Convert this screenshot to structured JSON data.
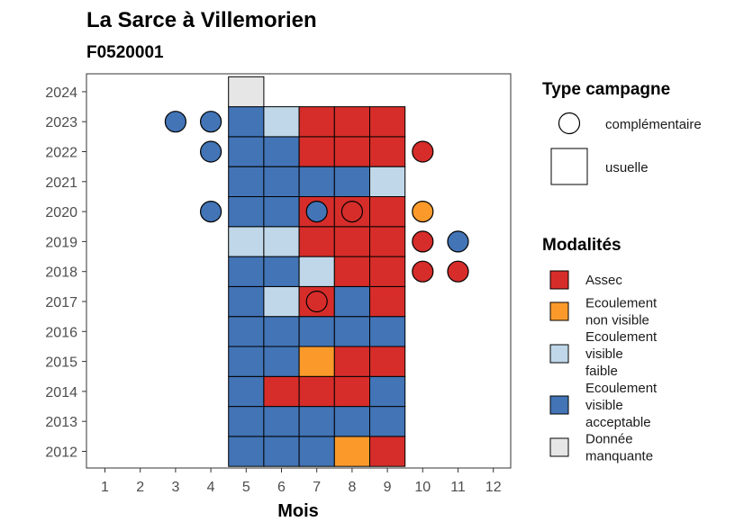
{
  "chart_data": {
    "type": "heatmap",
    "title": "La Sarce à Villemorien",
    "subtitle": "F0520001",
    "xlabel": "Mois",
    "ylabel": "",
    "x_ticks": [
      1,
      2,
      3,
      4,
      5,
      6,
      7,
      8,
      9,
      10,
      11,
      12
    ],
    "y_ticks": [
      2012,
      2013,
      2014,
      2015,
      2016,
      2017,
      2018,
      2019,
      2020,
      2021,
      2022,
      2023,
      2024
    ],
    "colors": {
      "Assec": "#d62d2a",
      "Ecoulement non visible": "#fb9a2b",
      "Ecoulement visible faible": "#bfd7e8",
      "Ecoulement visible acceptable": "#4274b6",
      "Donnée manquante": "#e6e6e6"
    },
    "usuelle": [
      {
        "year": 2012,
        "months": {
          "5": "Ecoulement visible acceptable",
          "6": "Ecoulement visible acceptable",
          "7": "Ecoulement visible acceptable",
          "8": "Ecoulement non visible",
          "9": "Assec"
        }
      },
      {
        "year": 2013,
        "months": {
          "5": "Ecoulement visible acceptable",
          "6": "Ecoulement visible acceptable",
          "7": "Ecoulement visible acceptable",
          "8": "Ecoulement visible acceptable",
          "9": "Ecoulement visible acceptable"
        }
      },
      {
        "year": 2014,
        "months": {
          "5": "Ecoulement visible acceptable",
          "6": "Assec",
          "7": "Assec",
          "8": "Assec",
          "9": "Ecoulement visible acceptable"
        }
      },
      {
        "year": 2015,
        "months": {
          "5": "Ecoulement visible acceptable",
          "6": "Ecoulement visible acceptable",
          "7": "Ecoulement non visible",
          "8": "Assec",
          "9": "Assec"
        }
      },
      {
        "year": 2016,
        "months": {
          "5": "Ecoulement visible acceptable",
          "6": "Ecoulement visible acceptable",
          "7": "Ecoulement visible acceptable",
          "8": "Ecoulement visible acceptable",
          "9": "Ecoulement visible acceptable"
        }
      },
      {
        "year": 2017,
        "months": {
          "5": "Ecoulement visible acceptable",
          "6": "Ecoulement visible faible",
          "7": "Assec",
          "8": "Ecoulement visible acceptable",
          "9": "Assec"
        }
      },
      {
        "year": 2018,
        "months": {
          "5": "Ecoulement visible acceptable",
          "6": "Ecoulement visible acceptable",
          "7": "Ecoulement visible faible",
          "8": "Assec",
          "9": "Assec"
        }
      },
      {
        "year": 2019,
        "months": {
          "5": "Ecoulement visible faible",
          "6": "Ecoulement visible faible",
          "7": "Assec",
          "8": "Assec",
          "9": "Assec"
        }
      },
      {
        "year": 2020,
        "months": {
          "5": "Ecoulement visible acceptable",
          "6": "Ecoulement visible acceptable",
          "7": "Assec",
          "8": "Assec",
          "9": "Assec"
        }
      },
      {
        "year": 2021,
        "months": {
          "5": "Ecoulement visible acceptable",
          "6": "Ecoulement visible acceptable",
          "7": "Ecoulement visible acceptable",
          "8": "Ecoulement visible acceptable",
          "9": "Ecoulement visible faible"
        }
      },
      {
        "year": 2022,
        "months": {
          "5": "Ecoulement visible acceptable",
          "6": "Ecoulement visible acceptable",
          "7": "Assec",
          "8": "Assec",
          "9": "Assec"
        }
      },
      {
        "year": 2023,
        "months": {
          "5": "Ecoulement visible acceptable",
          "6": "Ecoulement visible faible",
          "7": "Assec",
          "8": "Assec",
          "9": "Assec"
        }
      },
      {
        "year": 2024,
        "months": {
          "5": "Donnée manquante"
        }
      }
    ],
    "complementaire": [
      {
        "year": 2023,
        "month": 3,
        "value": "Ecoulement visible acceptable"
      },
      {
        "year": 2023,
        "month": 4,
        "value": "Ecoulement visible acceptable"
      },
      {
        "year": 2022,
        "month": 4,
        "value": "Ecoulement visible acceptable"
      },
      {
        "year": 2022,
        "month": 10,
        "value": "Assec"
      },
      {
        "year": 2020,
        "month": 4,
        "value": "Ecoulement visible acceptable"
      },
      {
        "year": 2020,
        "month": 7,
        "value": "Ecoulement visible acceptable"
      },
      {
        "year": 2020,
        "month": 8,
        "value": "Assec"
      },
      {
        "year": 2020,
        "month": 10,
        "value": "Ecoulement non visible"
      },
      {
        "year": 2019,
        "month": 10,
        "value": "Assec"
      },
      {
        "year": 2019,
        "month": 11,
        "value": "Ecoulement visible acceptable"
      },
      {
        "year": 2018,
        "month": 10,
        "value": "Assec"
      },
      {
        "year": 2018,
        "month": 11,
        "value": "Assec"
      },
      {
        "year": 2017,
        "month": 7,
        "value": "Assec"
      }
    ],
    "legend": {
      "campaign_title": "Type campagne",
      "campaign_items": [
        "complémentaire",
        "usuelle"
      ],
      "modality_title": "Modalités",
      "modality_items": [
        {
          "key": "Assec",
          "lines": [
            "Assec"
          ]
        },
        {
          "key": "Ecoulement non visible",
          "lines": [
            "Ecoulement",
            "non visible"
          ]
        },
        {
          "key": "Ecoulement visible faible",
          "lines": [
            "Ecoulement",
            "visible",
            "faible"
          ]
        },
        {
          "key": "Ecoulement visible acceptable",
          "lines": [
            "Ecoulement",
            "visible",
            "acceptable"
          ]
        },
        {
          "key": "Donnée manquante",
          "lines": [
            "Donnée",
            "manquante"
          ]
        }
      ],
      "position": "right"
    }
  }
}
